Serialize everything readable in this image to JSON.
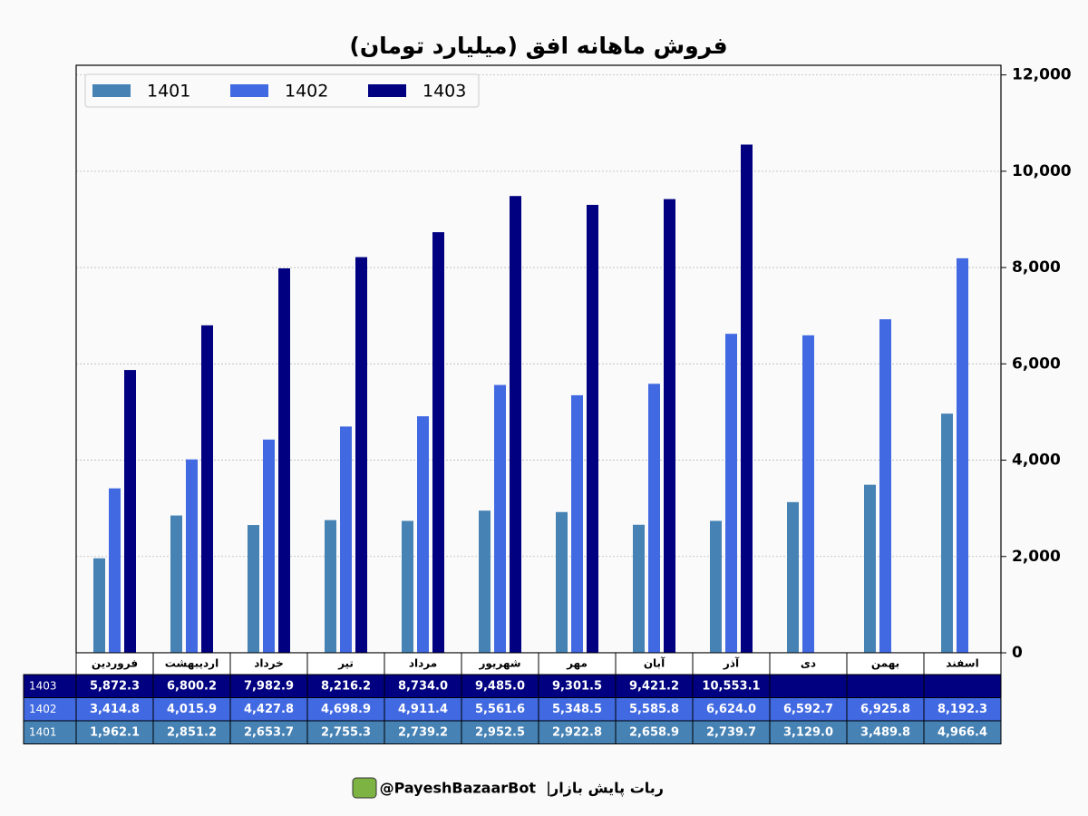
{
  "chart_data": {
    "type": "bar",
    "title": "فروش ماهانه افق (میلیارد تومان)",
    "categories": [
      "فروردین",
      "اردیبهشت",
      "خرداد",
      "تیر",
      "مرداد",
      "شهریور",
      "مهر",
      "آبان",
      "آذر",
      "دی",
      "بهمن",
      "اسفند"
    ],
    "series": [
      {
        "name": "1401",
        "color": "#4682b4",
        "values": [
          1962.1,
          2851.2,
          2653.7,
          2755.3,
          2739.2,
          2952.5,
          2922.8,
          2658.9,
          2739.7,
          3129.0,
          3489.8,
          4966.4
        ],
        "value_labels": [
          "1,962.1",
          "2,851.2",
          "2,653.7",
          "2,755.3",
          "2,739.2",
          "2,952.5",
          "2,922.8",
          "2,658.9",
          "2,739.7",
          "3,129.0",
          "3,489.8",
          "4,966.4"
        ]
      },
      {
        "name": "1402",
        "color": "#4169e1",
        "values": [
          3414.8,
          4015.9,
          4427.8,
          4698.9,
          4911.4,
          5561.6,
          5348.5,
          5585.8,
          6624.0,
          6592.7,
          6925.8,
          8192.3
        ],
        "value_labels": [
          "3,414.8",
          "4,015.9",
          "4,427.8",
          "4,698.9",
          "4,911.4",
          "5,561.6",
          "5,348.5",
          "5,585.8",
          "6,624.0",
          "6,592.7",
          "6,925.8",
          "8,192.3"
        ]
      },
      {
        "name": "1403",
        "color": "#000080",
        "values": [
          5872.3,
          6800.2,
          7982.9,
          8216.2,
          8734.0,
          9485.0,
          9301.5,
          9421.2,
          10553.1,
          null,
          null,
          null
        ],
        "value_labels": [
          "5,872.3",
          "6,800.2",
          "7,982.9",
          "8,216.2",
          "8,734.0",
          "9,485.0",
          "9,301.5",
          "9,421.2",
          "10,553.1",
          null,
          null,
          null
        ]
      }
    ],
    "ylim": [
      0,
      12200
    ],
    "yticks": [
      0,
      {
        "value": 2000,
        "label": "2,000"
      },
      {
        "value": 4000,
        "label": "4,000"
      },
      {
        "value": 6000,
        "label": "6,000"
      },
      {
        "value": 8000,
        "label": "8,000"
      },
      {
        "value": 10000,
        "label": "10,000"
      },
      {
        "value": 12000,
        "label": "12,000"
      }
    ],
    "yaxis_side": "right",
    "grid": true,
    "legend_loc": "upper left"
  },
  "footer": {
    "bot_name": "ربات پایش بازار",
    "handle": "@PayeshBazaarBot"
  }
}
